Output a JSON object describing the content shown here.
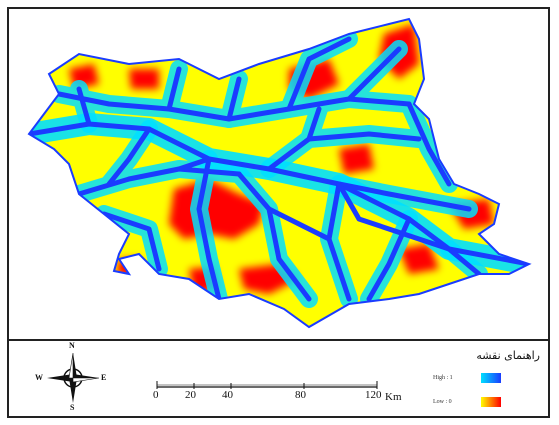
{
  "legend": {
    "title": "راهنمای نقشه",
    "high_label": "High : 1",
    "low_label": "Low : 0"
  },
  "compass": {
    "north": "N",
    "south": "S",
    "east": "E",
    "west": "W"
  },
  "scale": {
    "ticks": [
      "0",
      "20",
      "40",
      "80",
      "120"
    ],
    "unit": "Km"
  },
  "colors": {
    "river": "#1a3cff",
    "high": "#2040ff",
    "mid": "#00e0ff",
    "low_mid": "#ffff00",
    "low": "#ff0000"
  }
}
